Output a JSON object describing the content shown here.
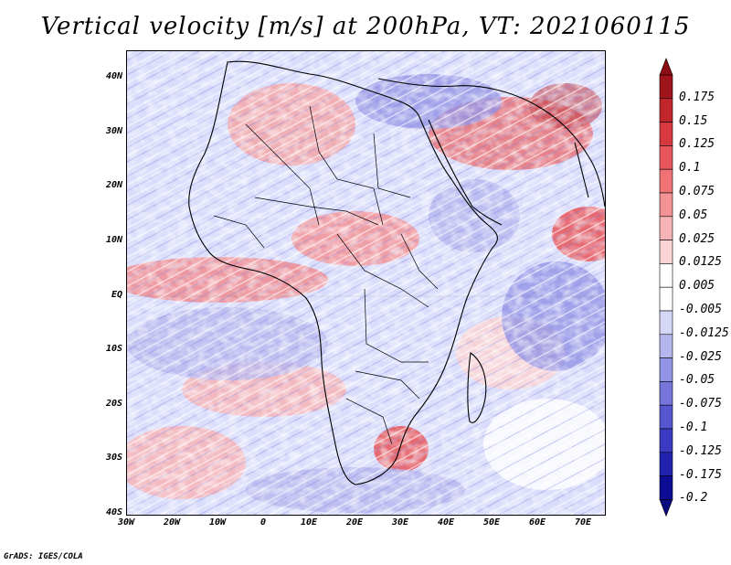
{
  "title": "Vertical velocity [m/s] at 200hPa, VT: 2021060115",
  "credit": "GrADS: IGES/COLA",
  "map": {
    "variable": "Vertical velocity",
    "units": "m/s",
    "level": "200hPa",
    "valid_time": "2021060115",
    "lat_range": [
      -40,
      45
    ],
    "lon_range": [
      -30,
      75
    ],
    "lat_ticks": [
      "40N",
      "30N",
      "20N",
      "10N",
      "EQ",
      "10S",
      "20S",
      "30S",
      "40S"
    ],
    "lon_ticks": [
      "30W",
      "20W",
      "10W",
      "0",
      "10E",
      "20E",
      "30E",
      "40E",
      "50E",
      "60E",
      "70E"
    ]
  },
  "colorbar": {
    "levels": [
      "0.175",
      "0.15",
      "0.125",
      "0.1",
      "0.075",
      "0.05",
      "0.025",
      "0.0125",
      "0.005",
      "-0.005",
      "-0.0125",
      "-0.025",
      "-0.05",
      "-0.075",
      "-0.1",
      "-0.125",
      "-0.175",
      "-0.2"
    ],
    "colors": [
      "#a0141c",
      "#c0262c",
      "#d8393e",
      "#e8555a",
      "#ef7275",
      "#f39396",
      "#f7b4b6",
      "#fad3d4",
      "#ffffff",
      "#ffffff",
      "#d6d7f7",
      "#b6b6ef",
      "#9494e6",
      "#7575dc",
      "#5656d0",
      "#3a3ac2",
      "#2222b0",
      "#0c0c95"
    ]
  }
}
